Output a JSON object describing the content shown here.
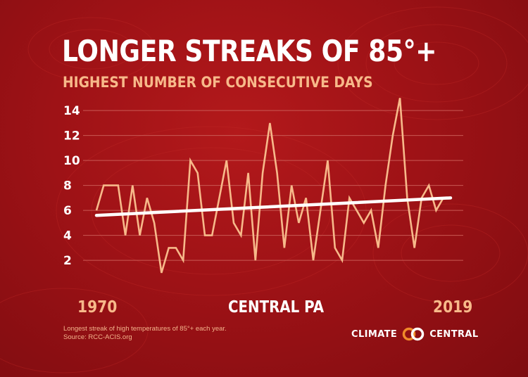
{
  "header": {
    "title": "LONGER STREAKS OF 85°+",
    "subtitle": "HIGHEST NUMBER OF CONSECUTIVE DAYS"
  },
  "labels": {
    "start_year": "1970",
    "end_year": "2019",
    "region": "CENTRAL PA"
  },
  "footnote": {
    "line1": "Longest streak of high temperatures of 85°+  each year.",
    "line2": "Source: RCC-ACIS.org"
  },
  "brand": {
    "left_word": "CLIMATE",
    "right_word": "CENTRAL"
  },
  "colors": {
    "background": "#a51417",
    "series": "#f7b98a",
    "trend": "#ffffff",
    "grid": "#c95a55"
  },
  "chart_data": {
    "type": "line",
    "title": "LONGER STREAKS OF 85°+",
    "subtitle": "HIGHEST NUMBER OF CONSECUTIVE DAYS",
    "xlabel": "",
    "ylabel": "",
    "x": [
      1970,
      1971,
      1972,
      1973,
      1974,
      1975,
      1976,
      1977,
      1978,
      1979,
      1980,
      1981,
      1982,
      1983,
      1984,
      1985,
      1986,
      1987,
      1988,
      1989,
      1990,
      1991,
      1992,
      1993,
      1994,
      1995,
      1996,
      1997,
      1998,
      1999,
      2000,
      2001,
      2002,
      2003,
      2004,
      2005,
      2006,
      2007,
      2008,
      2009,
      2010,
      2011,
      2012,
      2013,
      2014,
      2015,
      2016,
      2017,
      2018,
      2019
    ],
    "series": [
      {
        "values": [
          6,
          8,
          8,
          8,
          4,
          8,
          4,
          7,
          5,
          1,
          3,
          3,
          2,
          10,
          9,
          4,
          4,
          7,
          10,
          5,
          4,
          9,
          2,
          9,
          13,
          9,
          3,
          8,
          5,
          7,
          2,
          6,
          10,
          3,
          2,
          7,
          6,
          5,
          6,
          3,
          8,
          12,
          15,
          7,
          3,
          7,
          8,
          6,
          7,
          7
        ]
      },
      {
        "type": "trend",
        "x": [
          1970,
          2019
        ],
        "values": [
          5.6,
          7.0
        ]
      }
    ],
    "y_ticks": [
      2,
      4,
      6,
      8,
      10,
      12,
      14
    ],
    "ylim": [
      0,
      15.5
    ],
    "grid": true,
    "legend": "none"
  }
}
